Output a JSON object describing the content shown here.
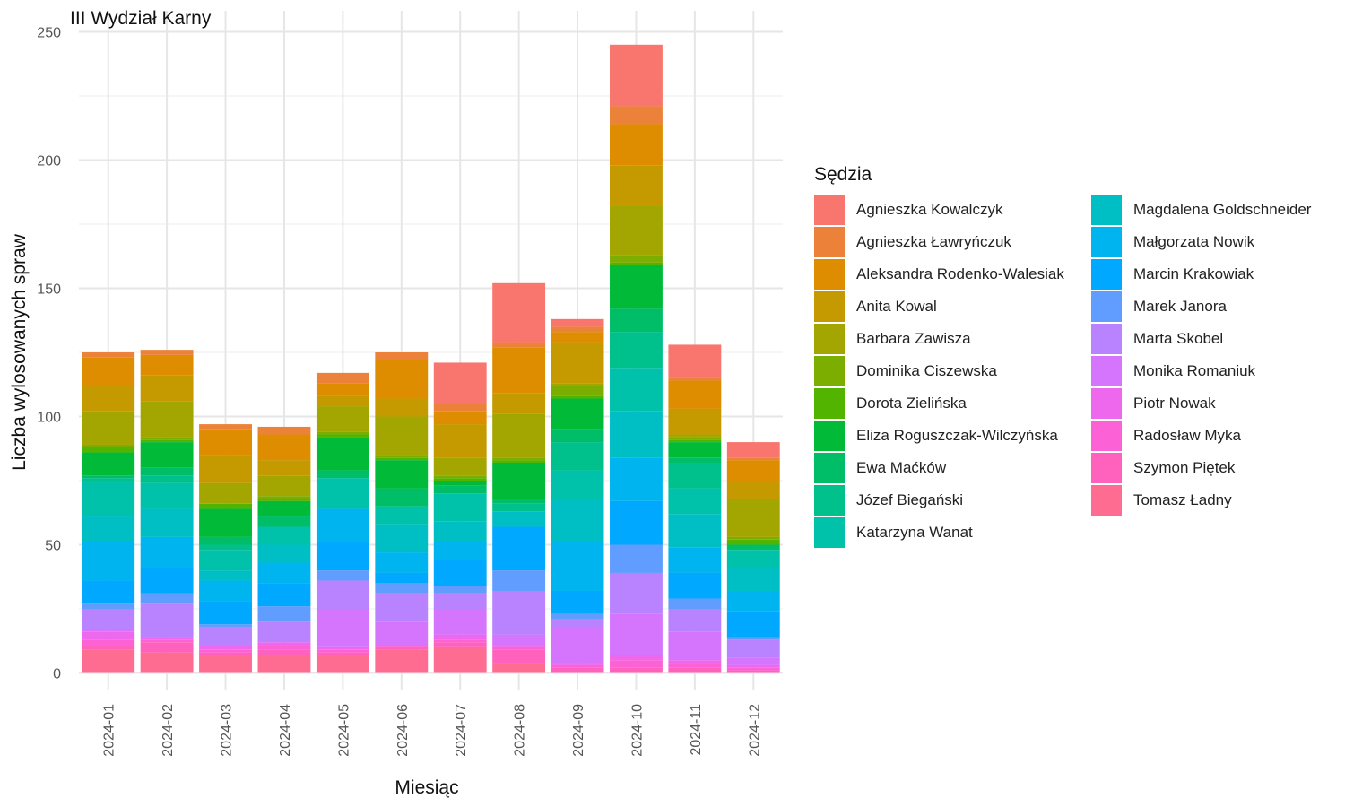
{
  "chart_data": {
    "type": "bar",
    "stacked": true,
    "title": "III Wydział Karny",
    "xlabel": "Miesiąc",
    "ylabel": "Liczba wylosowanych spraw",
    "ylim": [
      0,
      250
    ],
    "yticks": [
      0,
      50,
      100,
      150,
      200,
      250
    ],
    "grid": true,
    "legend_title": "Sędzia",
    "legend_position": "right",
    "categories": [
      "2024-01",
      "2024-02",
      "2024-03",
      "2024-04",
      "2024-05",
      "2024-06",
      "2024-07",
      "2024-08",
      "2024-09",
      "2024-10",
      "2024-11",
      "2024-12"
    ],
    "series": [
      {
        "name": "Tomasz Ładny",
        "color": "#FF6C91",
        "values": [
          9,
          8,
          7,
          7,
          7,
          9,
          10,
          4,
          0,
          0,
          0,
          0
        ]
      },
      {
        "name": "Szymon Piętek",
        "color": "#FF62BC",
        "values": [
          2,
          4,
          1,
          2,
          1,
          1,
          2,
          5,
          2,
          2,
          2,
          1
        ]
      },
      {
        "name": "Radosław Myka",
        "color": "#FC61D5",
        "values": [
          2,
          1,
          1,
          2,
          1,
          1,
          1,
          1,
          1,
          3,
          2,
          1
        ]
      },
      {
        "name": "Piotr Nowak",
        "color": "#ED68ED",
        "values": [
          3,
          1,
          2,
          1,
          1,
          0,
          2,
          1,
          1,
          2,
          1,
          1
        ]
      },
      {
        "name": "Monika Romaniuk",
        "color": "#D575FE",
        "values": [
          1,
          0,
          0,
          0,
          15,
          9,
          10,
          4,
          14,
          16,
          11,
          3
        ]
      },
      {
        "name": "Marta Skobel",
        "color": "#B983FF",
        "values": [
          8,
          13,
          7,
          8,
          11,
          11,
          6,
          17,
          3,
          16,
          9,
          7
        ]
      },
      {
        "name": "Marek Janora",
        "color": "#619CFF",
        "values": [
          2,
          4,
          1,
          6,
          4,
          4,
          3,
          8,
          2,
          11,
          4,
          1
        ]
      },
      {
        "name": "Marcin Krakowiak",
        "color": "#00A9FF",
        "values": [
          9,
          10,
          9,
          9,
          11,
          4,
          10,
          17,
          9,
          17,
          10,
          10
        ]
      },
      {
        "name": "Małgorzata Nowik",
        "color": "#00B4F0",
        "values": [
          15,
          12,
          8,
          8,
          13,
          8,
          7,
          0,
          19,
          17,
          10,
          8
        ]
      },
      {
        "name": "Magdalena Goldschneider",
        "color": "#00BFC4",
        "values": [
          10,
          11,
          4,
          7,
          0,
          11,
          8,
          6,
          17,
          18,
          13,
          9
        ]
      },
      {
        "name": "Katarzyna Wanat",
        "color": "#00C1AA",
        "values": [
          14,
          10,
          8,
          7,
          12,
          7,
          11,
          0,
          11,
          17,
          10,
          7
        ]
      },
      {
        "name": "Józef Biegański",
        "color": "#00C08B",
        "values": [
          1,
          3,
          2,
          0,
          0,
          0,
          0,
          3,
          11,
          14,
          10,
          0
        ]
      },
      {
        "name": "Ewa Maćków",
        "color": "#00BE67",
        "values": [
          1,
          3,
          3,
          4,
          3,
          7,
          3,
          2,
          5,
          9,
          2,
          2
        ]
      },
      {
        "name": "Eliza Roguszczak-Wilczyńska",
        "color": "#00BA38",
        "values": [
          9,
          10,
          11,
          6,
          13,
          11,
          2,
          14,
          12,
          17,
          6,
          0
        ]
      },
      {
        "name": "Dorota Zielińska",
        "color": "#53B400",
        "values": [
          2,
          1,
          2,
          1,
          1,
          1,
          1,
          1,
          1,
          1,
          1,
          2
        ]
      },
      {
        "name": "Dominika Ciszewska",
        "color": "#7CAE00",
        "values": [
          1,
          1,
          0,
          1,
          1,
          1,
          1,
          1,
          4,
          3,
          1,
          1
        ]
      },
      {
        "name": "Barbara Zawisza",
        "color": "#A3A500",
        "values": [
          13,
          14,
          8,
          8,
          10,
          15,
          7,
          17,
          1,
          19,
          1,
          15
        ]
      },
      {
        "name": "Anita Kowal",
        "color": "#C49A00",
        "values": [
          10,
          10,
          11,
          6,
          4,
          7,
          13,
          8,
          16,
          16,
          10,
          7
        ]
      },
      {
        "name": "Aleksandra Rodenko-Walesiak",
        "color": "#DE8C00",
        "values": [
          11,
          8,
          10,
          10,
          5,
          15,
          5,
          18,
          4,
          16,
          11,
          8
        ]
      },
      {
        "name": "Agnieszka Ławryńczuk",
        "color": "#EC8239",
        "values": [
          2,
          2,
          2,
          3,
          4,
          3,
          3,
          2,
          2,
          7,
          1,
          1
        ]
      },
      {
        "name": "Agnieszka Kowalczyk",
        "color": "#F8766D",
        "values": [
          0,
          0,
          0,
          0,
          0,
          0,
          16,
          23,
          3,
          24,
          13,
          6
        ]
      }
    ]
  }
}
